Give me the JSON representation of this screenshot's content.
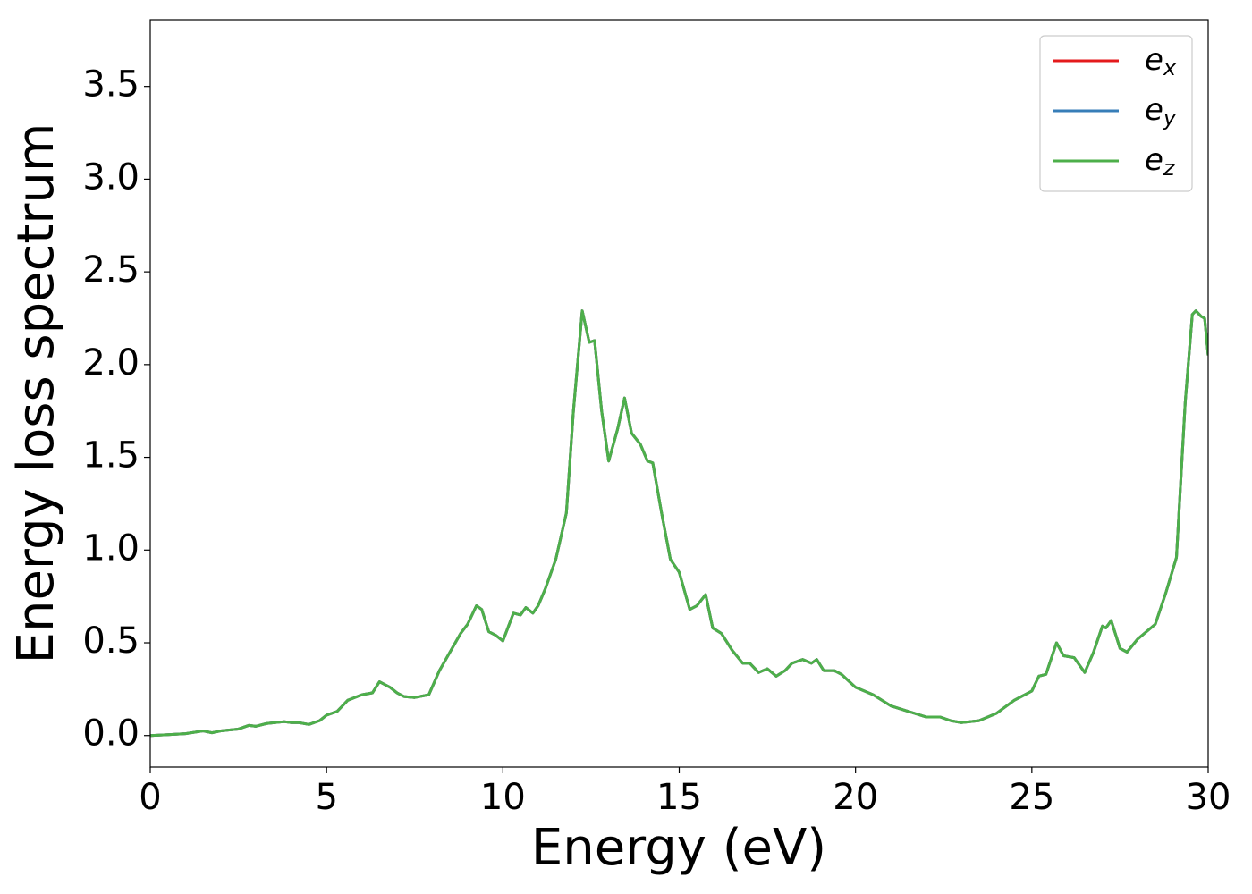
{
  "chart_data": {
    "type": "line",
    "xlabel": "Energy (eV)",
    "ylabel": "Energy loss spectrum",
    "x": [
      0,
      0.5,
      1.0,
      1.5,
      1.75,
      2.0,
      2.5,
      2.8,
      3.0,
      3.3,
      3.8,
      4.0,
      4.2,
      4.5,
      4.8,
      5.0,
      5.3,
      5.6,
      6.0,
      6.3,
      6.5,
      6.8,
      7.0,
      7.2,
      7.5,
      7.9,
      8.2,
      8.5,
      8.8,
      9.0,
      9.25,
      9.4,
      9.6,
      9.8,
      10.0,
      10.3,
      10.5,
      10.65,
      10.85,
      11.0,
      11.2,
      11.5,
      11.8,
      12.0,
      12.25,
      12.45,
      12.6,
      12.8,
      13.0,
      13.25,
      13.45,
      13.65,
      13.9,
      14.1,
      14.25,
      14.5,
      14.75,
      15.0,
      15.3,
      15.5,
      15.75,
      15.95,
      16.2,
      16.5,
      16.8,
      17.0,
      17.25,
      17.5,
      17.75,
      18.0,
      18.2,
      18.5,
      18.75,
      18.9,
      19.1,
      19.4,
      19.6,
      20.0,
      20.5,
      21.0,
      21.5,
      22.0,
      22.4,
      22.7,
      23.0,
      23.5,
      24.0,
      24.5,
      25.0,
      25.2,
      25.4,
      25.7,
      25.9,
      26.2,
      26.5,
      26.75,
      27.0,
      27.1,
      27.25,
      27.5,
      27.7,
      28.0,
      28.5,
      28.8,
      29.1,
      29.35,
      29.55,
      29.65,
      29.8,
      29.9,
      30.0
    ],
    "series": [
      {
        "name": "e_x",
        "color": "#e41a1c",
        "values": [
          0,
          0.005,
          0.01,
          0.025,
          0.015,
          0.025,
          0.035,
          0.055,
          0.05,
          0.065,
          0.075,
          0.07,
          0.07,
          0.06,
          0.08,
          0.11,
          0.13,
          0.19,
          0.22,
          0.23,
          0.29,
          0.26,
          0.23,
          0.21,
          0.205,
          0.22,
          0.35,
          0.45,
          0.55,
          0.6,
          0.7,
          0.68,
          0.56,
          0.54,
          0.51,
          0.66,
          0.65,
          0.69,
          0.66,
          0.7,
          0.79,
          0.95,
          1.2,
          1.75,
          2.29,
          2.12,
          2.13,
          1.75,
          1.48,
          1.65,
          1.82,
          1.63,
          1.57,
          1.48,
          1.47,
          1.2,
          0.95,
          0.88,
          0.68,
          0.7,
          0.76,
          0.58,
          0.55,
          0.46,
          0.39,
          0.39,
          0.34,
          0.36,
          0.32,
          0.35,
          0.39,
          0.41,
          0.39,
          0.41,
          0.35,
          0.35,
          0.33,
          0.26,
          0.22,
          0.16,
          0.13,
          0.1,
          0.1,
          0.08,
          0.07,
          0.08,
          0.12,
          0.19,
          0.24,
          0.32,
          0.33,
          0.5,
          0.43,
          0.42,
          0.34,
          0.45,
          0.59,
          0.58,
          0.62,
          0.47,
          0.45,
          0.52,
          0.6,
          0.77,
          0.96,
          1.8,
          2.27,
          2.29,
          2.26,
          2.25,
          2.05
        ]
      },
      {
        "name": "e_y",
        "color": "#377eb8",
        "values": [
          0,
          0.005,
          0.01,
          0.025,
          0.015,
          0.025,
          0.035,
          0.055,
          0.05,
          0.065,
          0.075,
          0.07,
          0.07,
          0.06,
          0.08,
          0.11,
          0.13,
          0.19,
          0.22,
          0.23,
          0.29,
          0.26,
          0.23,
          0.21,
          0.205,
          0.22,
          0.35,
          0.45,
          0.55,
          0.6,
          0.7,
          0.68,
          0.56,
          0.54,
          0.51,
          0.66,
          0.65,
          0.69,
          0.66,
          0.7,
          0.79,
          0.95,
          1.2,
          1.75,
          2.29,
          2.12,
          2.13,
          1.75,
          1.48,
          1.65,
          1.82,
          1.63,
          1.57,
          1.48,
          1.47,
          1.2,
          0.95,
          0.88,
          0.68,
          0.7,
          0.76,
          0.58,
          0.55,
          0.46,
          0.39,
          0.39,
          0.34,
          0.36,
          0.32,
          0.35,
          0.39,
          0.41,
          0.39,
          0.41,
          0.35,
          0.35,
          0.33,
          0.26,
          0.22,
          0.16,
          0.13,
          0.1,
          0.1,
          0.08,
          0.07,
          0.08,
          0.12,
          0.19,
          0.24,
          0.32,
          0.33,
          0.5,
          0.43,
          0.42,
          0.34,
          0.45,
          0.59,
          0.58,
          0.62,
          0.47,
          0.45,
          0.52,
          0.6,
          0.77,
          0.96,
          1.8,
          2.27,
          2.29,
          2.26,
          2.25,
          2.05
        ]
      },
      {
        "name": "e_z",
        "color": "#4daf4a",
        "values": [
          0,
          0.005,
          0.01,
          0.025,
          0.015,
          0.025,
          0.035,
          0.055,
          0.05,
          0.065,
          0.075,
          0.07,
          0.07,
          0.06,
          0.08,
          0.11,
          0.13,
          0.19,
          0.22,
          0.23,
          0.29,
          0.26,
          0.23,
          0.21,
          0.205,
          0.22,
          0.35,
          0.45,
          0.55,
          0.6,
          0.7,
          0.68,
          0.56,
          0.54,
          0.51,
          0.66,
          0.65,
          0.69,
          0.66,
          0.7,
          0.79,
          0.95,
          1.2,
          1.75,
          2.29,
          2.12,
          2.13,
          1.75,
          1.48,
          1.65,
          1.82,
          1.63,
          1.57,
          1.48,
          1.47,
          1.2,
          0.95,
          0.88,
          0.68,
          0.7,
          0.76,
          0.58,
          0.55,
          0.46,
          0.39,
          0.39,
          0.34,
          0.36,
          0.32,
          0.35,
          0.39,
          0.41,
          0.39,
          0.41,
          0.35,
          0.35,
          0.33,
          0.26,
          0.22,
          0.16,
          0.13,
          0.1,
          0.1,
          0.08,
          0.07,
          0.08,
          0.12,
          0.19,
          0.24,
          0.32,
          0.33,
          0.5,
          0.43,
          0.42,
          0.34,
          0.45,
          0.59,
          0.58,
          0.62,
          0.47,
          0.45,
          0.52,
          0.6,
          0.77,
          0.96,
          1.8,
          2.27,
          2.29,
          2.26,
          2.25,
          2.05
        ]
      }
    ],
    "xlim": [
      0,
      30
    ],
    "xticks": [
      0,
      5,
      10,
      15,
      20,
      25,
      30
    ],
    "ylim": [
      -0.17,
      3.86
    ],
    "yticks": [
      {
        "value": 0,
        "label": "0.0"
      },
      0.5,
      {
        "value": 1,
        "label": "1.0"
      },
      1.5,
      {
        "value": 2,
        "label": "2.0"
      },
      2.5,
      {
        "value": 3,
        "label": "3.0"
      },
      3.5
    ],
    "grid": false,
    "legend": "upper right"
  }
}
